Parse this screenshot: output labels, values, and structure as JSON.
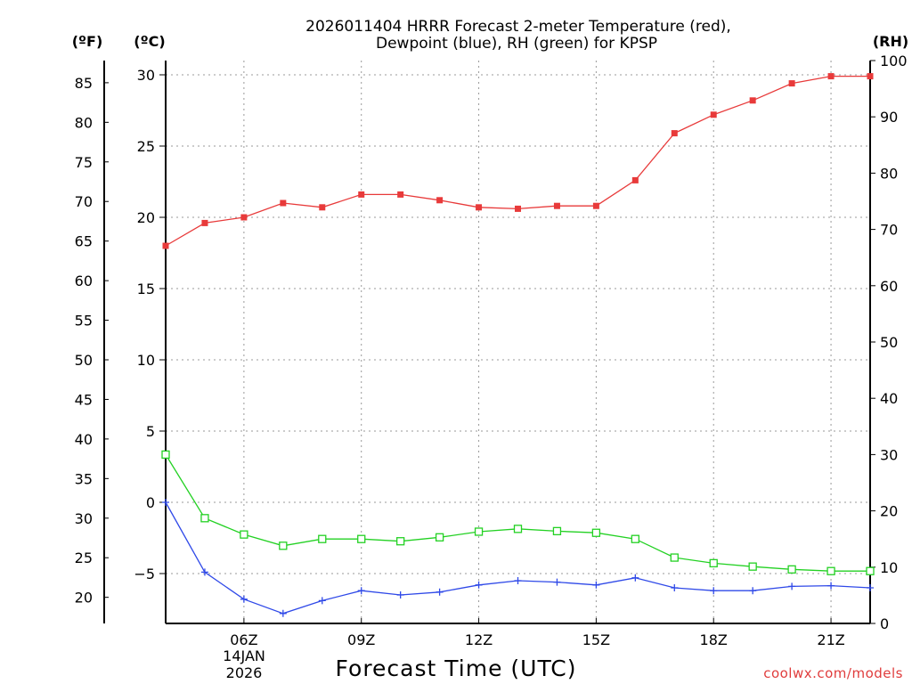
{
  "chart_data": {
    "type": "line",
    "title_line1": "2026011404 HRRR Forecast 2-meter Temperature (red),",
    "title_line2": "Dewpoint (blue), RH (green) for KPSP",
    "xlabel": "Forecast Time (UTC)",
    "credit": "coolwx.com/models",
    "date_label_day": "14JAN",
    "date_label_year": "2026",
    "unit_labels": {
      "fahrenheit": "(ºF)",
      "celsius": "(ºC)",
      "rh": "(RH)"
    },
    "x_hours": [
      4,
      5,
      6,
      7,
      8,
      9,
      10,
      11,
      12,
      13,
      14,
      15,
      16,
      17,
      18,
      19,
      20,
      21,
      22
    ],
    "x_range": [
      4,
      22
    ],
    "x_ticks": [
      {
        "hour": 6,
        "label": "06Z"
      },
      {
        "hour": 9,
        "label": "09Z"
      },
      {
        "hour": 12,
        "label": "12Z"
      },
      {
        "hour": 15,
        "label": "15Z"
      },
      {
        "hour": 18,
        "label": "18Z"
      },
      {
        "hour": 21,
        "label": "21Z"
      }
    ],
    "celsius_axis": {
      "range": [
        -8.5,
        31
      ],
      "ticks": [
        "30",
        "25",
        "20",
        "15",
        "10",
        "5",
        "0",
        "−5"
      ],
      "tick_values": [
        30,
        25,
        20,
        15,
        10,
        5,
        0,
        -5
      ]
    },
    "fahrenheit_axis": {
      "ticks": [
        "85",
        "80",
        "75",
        "70",
        "65",
        "60",
        "55",
        "50",
        "45",
        "40",
        "35",
        "30",
        "25",
        "20"
      ],
      "tick_values": [
        85,
        80,
        75,
        70,
        65,
        60,
        55,
        50,
        45,
        40,
        35,
        30,
        25,
        20
      ]
    },
    "rh_axis": {
      "range": [
        0,
        100
      ],
      "ticks": [
        "100",
        "90",
        "80",
        "70",
        "60",
        "50",
        "40",
        "30",
        "20",
        "10",
        "0"
      ],
      "tick_values": [
        100,
        90,
        80,
        70,
        60,
        50,
        40,
        30,
        20,
        10,
        0
      ]
    },
    "series": [
      {
        "name": "Temperature",
        "axis": "celsius",
        "color": "#e83a3a",
        "marker": "filled-square",
        "values": [
          18.0,
          19.6,
          20.0,
          21.0,
          20.7,
          21.6,
          21.6,
          21.2,
          20.7,
          20.6,
          20.8,
          20.8,
          22.6,
          25.9,
          27.2,
          28.2,
          29.4,
          29.9,
          29.9
        ]
      },
      {
        "name": "Dewpoint",
        "axis": "celsius",
        "color": "#2f49e8",
        "marker": "plus",
        "values": [
          0.0,
          -4.9,
          -6.8,
          -7.8,
          -6.9,
          -6.2,
          -6.5,
          -6.3,
          -5.8,
          -5.5,
          -5.6,
          -5.8,
          -5.3,
          -6.0,
          -6.2,
          -6.2,
          -5.9,
          -5.85,
          -6.0
        ]
      },
      {
        "name": "RH",
        "axis": "rh",
        "color": "#23d123",
        "marker": "open-square",
        "values": [
          30.0,
          18.7,
          15.8,
          13.8,
          15.0,
          15.0,
          14.6,
          15.3,
          16.3,
          16.8,
          16.4,
          16.1,
          15.0,
          11.7,
          10.7,
          10.1,
          9.6,
          9.3,
          9.3
        ]
      }
    ]
  }
}
